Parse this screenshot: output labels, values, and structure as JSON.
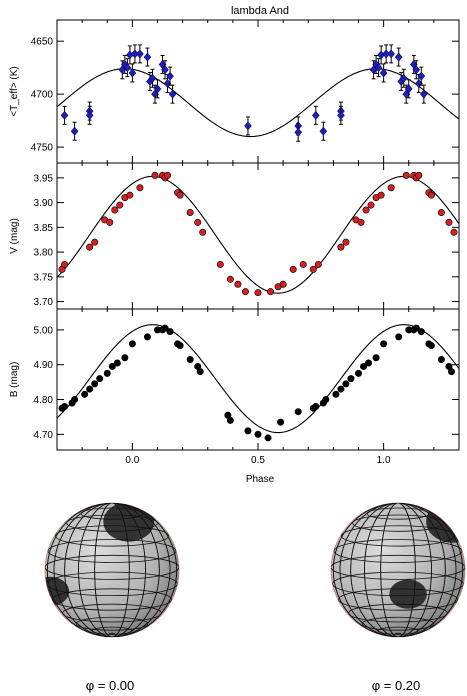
{
  "chart_data": {
    "type": "scatter",
    "title": "lambda And",
    "xlabel": "Phase",
    "xlim": [
      -0.3,
      1.3
    ],
    "xticks": [
      "0.0",
      "0.5",
      "1.0"
    ],
    "xtick_values": [
      0.0,
      0.5,
      1.0
    ],
    "panels": [
      {
        "ylabel": "<T_eff> (K)",
        "ylim": [
          4630,
          4765
        ],
        "yticks": [
          "4750",
          "4700",
          "4650"
        ],
        "ytick_values": [
          4750,
          4700,
          4650
        ],
        "marker": "diamond",
        "marker_color": "#1f1fbf",
        "error_bars": true,
        "points": [
          [
            -0.27,
            4720
          ],
          [
            -0.23,
            4735
          ],
          [
            -0.17,
            4716
          ],
          [
            -0.17,
            4720
          ],
          [
            -0.04,
            4677
          ],
          [
            -0.03,
            4672
          ],
          [
            -0.02,
            4675
          ],
          [
            -0.01,
            4663
          ],
          [
            0.0,
            4680
          ],
          [
            0.01,
            4662
          ],
          [
            0.03,
            4662
          ],
          [
            0.06,
            4665
          ],
          [
            0.07,
            4688
          ],
          [
            0.08,
            4685
          ],
          [
            0.09,
            4700
          ],
          [
            0.1,
            4695
          ],
          [
            0.12,
            4672
          ],
          [
            0.13,
            4677
          ],
          [
            0.14,
            4690
          ],
          [
            0.15,
            4683
          ],
          [
            0.16,
            4700
          ],
          [
            0.46,
            4730
          ],
          [
            0.66,
            4730
          ],
          [
            0.66,
            4736
          ],
          [
            0.73,
            4720
          ],
          [
            0.76,
            4735
          ],
          [
            0.83,
            4716
          ],
          [
            0.83,
            4720
          ],
          [
            0.96,
            4677
          ],
          [
            0.97,
            4672
          ],
          [
            0.98,
            4675
          ],
          [
            0.99,
            4663
          ],
          [
            1.0,
            4680
          ],
          [
            1.01,
            4662
          ],
          [
            1.03,
            4662
          ],
          [
            1.06,
            4665
          ],
          [
            1.07,
            4688
          ],
          [
            1.08,
            4685
          ],
          [
            1.09,
            4700
          ],
          [
            1.1,
            4695
          ],
          [
            1.12,
            4672
          ],
          [
            1.13,
            4677
          ],
          [
            1.14,
            4690
          ],
          [
            1.15,
            4683
          ],
          [
            1.16,
            4700
          ]
        ],
        "model": {
          "mean": 4708,
          "amplitude": 32,
          "peak_phase": 0.47
        }
      },
      {
        "ylabel": "V (mag)",
        "ylim": [
          3.98,
          3.685
        ],
        "yticks": [
          "3.70",
          "3.75",
          "3.80",
          "3.85",
          "3.90",
          "3.95"
        ],
        "ytick_values": [
          3.7,
          3.75,
          3.8,
          3.85,
          3.9,
          3.95
        ],
        "marker": "circle",
        "marker_color": "#d42020",
        "error_bars": false,
        "points": [
          [
            -0.28,
            3.765
          ],
          [
            -0.27,
            3.775
          ],
          [
            -0.17,
            3.81
          ],
          [
            -0.15,
            3.82
          ],
          [
            -0.11,
            3.865
          ],
          [
            -0.09,
            3.86
          ],
          [
            -0.07,
            3.885
          ],
          [
            -0.05,
            3.895
          ],
          [
            -0.03,
            3.91
          ],
          [
            -0.01,
            3.915
          ],
          [
            0.03,
            3.93
          ],
          [
            0.09,
            3.955
          ],
          [
            0.12,
            3.955
          ],
          [
            0.13,
            3.95
          ],
          [
            0.14,
            3.955
          ],
          [
            0.18,
            3.92
          ],
          [
            0.19,
            3.915
          ],
          [
            0.23,
            3.88
          ],
          [
            0.26,
            3.86
          ],
          [
            0.28,
            3.84
          ],
          [
            0.35,
            3.775
          ],
          [
            0.39,
            3.745
          ],
          [
            0.42,
            3.735
          ],
          [
            0.45,
            3.72
          ],
          [
            0.5,
            3.718
          ],
          [
            0.55,
            3.72
          ],
          [
            0.58,
            3.73
          ],
          [
            0.6,
            3.735
          ],
          [
            0.64,
            3.765
          ],
          [
            0.68,
            3.775
          ],
          [
            0.72,
            3.765
          ],
          [
            0.74,
            3.775
          ],
          [
            0.83,
            3.81
          ],
          [
            0.85,
            3.82
          ],
          [
            0.89,
            3.865
          ],
          [
            0.91,
            3.86
          ],
          [
            0.93,
            3.885
          ],
          [
            0.95,
            3.895
          ],
          [
            0.97,
            3.91
          ],
          [
            0.99,
            3.915
          ],
          [
            1.03,
            3.93
          ],
          [
            1.09,
            3.955
          ],
          [
            1.12,
            3.955
          ],
          [
            1.13,
            3.95
          ],
          [
            1.14,
            3.955
          ],
          [
            1.18,
            3.92
          ],
          [
            1.19,
            3.915
          ],
          [
            1.23,
            3.88
          ],
          [
            1.26,
            3.86
          ],
          [
            1.28,
            3.84
          ]
        ],
        "model": {
          "mean": 3.835,
          "amplitude": 0.118,
          "peak_phase": 0.08
        }
      },
      {
        "ylabel": "B (mag)",
        "ylim": [
          5.06,
          4.655
        ],
        "yticks": [
          "4.70",
          "4.80",
          "4.90",
          "5.00"
        ],
        "ytick_values": [
          4.7,
          4.8,
          4.9,
          5.0
        ],
        "marker": "circle",
        "marker_color": "#000000",
        "error_bars": false,
        "points": [
          [
            -0.28,
            4.775
          ],
          [
            -0.27,
            4.78
          ],
          [
            -0.24,
            4.79
          ],
          [
            -0.23,
            4.8
          ],
          [
            -0.19,
            4.815
          ],
          [
            -0.17,
            4.83
          ],
          [
            -0.15,
            4.845
          ],
          [
            -0.13,
            4.86
          ],
          [
            -0.1,
            4.875
          ],
          [
            -0.08,
            4.895
          ],
          [
            -0.06,
            4.905
          ],
          [
            -0.03,
            4.92
          ],
          [
            0.0,
            4.96
          ],
          [
            0.06,
            4.98
          ],
          [
            0.1,
            5.0
          ],
          [
            0.12,
            5.0
          ],
          [
            0.13,
            5.005
          ],
          [
            0.15,
            4.995
          ],
          [
            0.18,
            4.96
          ],
          [
            0.19,
            4.955
          ],
          [
            0.23,
            4.915
          ],
          [
            0.26,
            4.895
          ],
          [
            0.27,
            4.88
          ],
          [
            0.38,
            4.755
          ],
          [
            0.39,
            4.74
          ],
          [
            0.46,
            4.71
          ],
          [
            0.5,
            4.7
          ],
          [
            0.54,
            4.69
          ],
          [
            0.59,
            4.735
          ],
          [
            0.66,
            4.765
          ],
          [
            0.72,
            4.775
          ],
          [
            0.73,
            4.78
          ],
          [
            0.76,
            4.79
          ],
          [
            0.77,
            4.8
          ],
          [
            0.81,
            4.815
          ],
          [
            0.83,
            4.83
          ],
          [
            0.85,
            4.845
          ],
          [
            0.87,
            4.86
          ],
          [
            0.9,
            4.875
          ],
          [
            0.92,
            4.895
          ],
          [
            0.94,
            4.905
          ],
          [
            0.97,
            4.92
          ],
          [
            1.0,
            4.96
          ],
          [
            1.06,
            4.98
          ],
          [
            1.1,
            5.0
          ],
          [
            1.12,
            5.0
          ],
          [
            1.13,
            5.005
          ],
          [
            1.15,
            4.995
          ],
          [
            1.18,
            4.96
          ],
          [
            1.19,
            4.955
          ],
          [
            1.23,
            4.915
          ],
          [
            1.26,
            4.895
          ],
          [
            1.27,
            4.88
          ]
        ],
        "model": {
          "mean": 4.86,
          "amplitude": 0.155,
          "peak_phase": 0.08
        }
      }
    ],
    "globes": [
      {
        "label": "φ = 0.00",
        "spots": [
          [
            0.25,
            -0.72,
            0.38
          ],
          [
            -0.92,
            0.32,
            0.28
          ]
        ]
      },
      {
        "label": "φ = 0.20",
        "spots": [
          [
            0.82,
            -0.72,
            0.4
          ],
          [
            0.15,
            0.36,
            0.28
          ]
        ]
      }
    ]
  }
}
